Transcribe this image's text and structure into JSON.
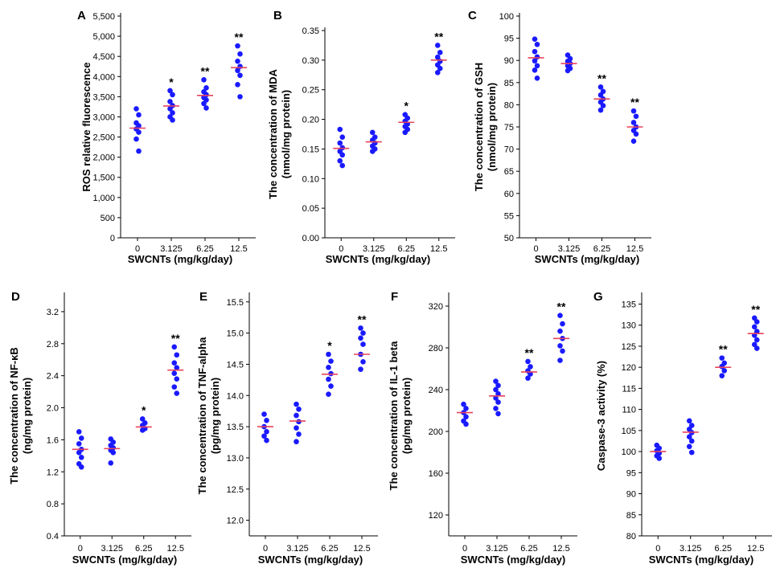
{
  "colors": {
    "point": "#1a1aff",
    "mean_line": "#e8435a",
    "axis": "#000000"
  },
  "chart_data": [
    {
      "panel": "A",
      "type": "scatter",
      "xlabel": "SWCNTs (mg/kg/day)",
      "ylabel": [
        "ROS relative fluorescence"
      ],
      "categories": [
        "0",
        "3.125",
        "6.25",
        "12.5"
      ],
      "ylim": [
        0,
        5500
      ],
      "yticks": [
        0,
        500,
        1000,
        1500,
        2000,
        2500,
        3000,
        3500,
        4000,
        4500,
        5000,
        5500
      ],
      "ytick_labels": [
        "0",
        "500",
        "1,000",
        "1,500",
        "2,000",
        "2,500",
        "3,000",
        "3,500",
        "4,000",
        "4,500",
        "5,000",
        "5,500"
      ],
      "means": [
        2720,
        3270,
        3530,
        4220
      ],
      "points": [
        [
          3200,
          3050,
          2850,
          2780,
          2700,
          2620,
          2450,
          2150
        ],
        [
          3650,
          3550,
          3380,
          3280,
          3200,
          3100,
          3000,
          2920
        ],
        [
          3920,
          3720,
          3620,
          3550,
          3480,
          3420,
          3330,
          3220
        ],
        [
          4760,
          4560,
          4380,
          4250,
          4150,
          4030,
          3800,
          3500
        ]
      ],
      "significance": [
        "",
        "*",
        "**",
        "**"
      ]
    },
    {
      "panel": "B",
      "type": "scatter",
      "xlabel": "SWCNTs (mg/kg/day)",
      "ylabel": [
        "The concentration of MDA",
        "(nmol/mg protein)"
      ],
      "categories": [
        "0",
        "3.125",
        "6.25",
        "12.5"
      ],
      "ylim": [
        0,
        0.35
      ],
      "yticks": [
        0,
        0.05,
        0.1,
        0.15,
        0.2,
        0.25,
        0.3,
        0.35
      ],
      "ytick_labels": [
        "0.00",
        "0.05",
        "0.10",
        "0.15",
        "0.20",
        "0.25",
        "0.30",
        "0.35"
      ],
      "means": [
        0.151,
        0.162,
        0.195,
        0.3
      ],
      "points": [
        [
          0.183,
          0.17,
          0.16,
          0.152,
          0.146,
          0.14,
          0.13,
          0.122
        ],
        [
          0.178,
          0.17,
          0.165,
          0.16,
          0.155,
          0.15,
          0.146
        ],
        [
          0.208,
          0.202,
          0.197,
          0.192,
          0.188,
          0.183,
          0.178
        ],
        [
          0.325,
          0.313,
          0.305,
          0.298,
          0.292,
          0.286,
          0.279
        ]
      ],
      "significance": [
        "",
        "",
        "*",
        "**"
      ]
    },
    {
      "panel": "C",
      "type": "scatter",
      "xlabel": "SWCNTs (mg/kg/day)",
      "ylabel": [
        "The concentration of GSH",
        "(nmol/mg protein)"
      ],
      "categories": [
        "0",
        "3.125",
        "6.25",
        "12.5"
      ],
      "ylim": [
        50,
        100
      ],
      "yticks": [
        50,
        55,
        60,
        65,
        70,
        75,
        80,
        85,
        90,
        95,
        100
      ],
      "ytick_labels": [
        "50",
        "55",
        "60",
        "65",
        "70",
        "75",
        "80",
        "85",
        "90",
        "95",
        "100"
      ],
      "means": [
        90.6,
        89.3,
        81.3,
        75.0
      ],
      "points": [
        [
          94.8,
          93.6,
          92.0,
          90.8,
          89.9,
          88.8,
          87.8,
          86.0
        ],
        [
          91.2,
          90.4,
          89.8,
          89.3,
          88.8,
          88.2,
          87.7
        ],
        [
          84.0,
          83.0,
          82.2,
          81.3,
          80.6,
          79.8,
          78.8
        ],
        [
          78.6,
          77.4,
          76.0,
          75.0,
          74.2,
          73.4,
          71.8
        ]
      ],
      "significance": [
        "",
        "",
        "**",
        "**"
      ]
    },
    {
      "panel": "D",
      "type": "scatter",
      "xlabel": "SWCNTs (mg/kg/day)",
      "ylabel": [
        "The concentration of NF-κB",
        "(ng/mg protein)"
      ],
      "categories": [
        "0",
        "3.125",
        "6.25",
        "12.5"
      ],
      "ylim": [
        0.4,
        3.4
      ],
      "yticks": [
        0.4,
        0.8,
        1.2,
        1.6,
        2.0,
        2.4,
        2.8,
        3.2
      ],
      "ytick_labels": [
        "0.4",
        "0.8",
        "1.2",
        "1.6",
        "2.0",
        "2.4",
        "2.8",
        "3.2"
      ],
      "means": [
        1.48,
        1.49,
        1.76,
        2.47
      ],
      "points": [
        [
          1.7,
          1.62,
          1.55,
          1.48,
          1.44,
          1.38,
          1.3,
          1.26
        ],
        [
          1.61,
          1.57,
          1.53,
          1.5,
          1.47,
          1.44,
          1.31
        ],
        [
          1.86,
          1.81,
          1.78,
          1.74,
          1.72
        ],
        [
          2.76,
          2.66,
          2.56,
          2.5,
          2.43,
          2.36,
          2.26,
          2.18
        ]
      ],
      "significance": [
        "",
        "",
        "*",
        "**"
      ]
    },
    {
      "panel": "E",
      "type": "scatter",
      "xlabel": "SWCNTs (mg/kg/day)",
      "ylabel": [
        "The concentration of TNF-alpha",
        "(pg/mg protein)"
      ],
      "categories": [
        "0",
        "3.125",
        "6.25",
        "12.5"
      ],
      "ylim": [
        11.75,
        15.6
      ],
      "yticks": [
        12.0,
        12.5,
        13.0,
        13.5,
        14.0,
        14.5,
        15.0,
        15.5
      ],
      "ytick_labels": [
        "12.0",
        "12.5",
        "13.0",
        "13.5",
        "14.0",
        "14.5",
        "15.0",
        "15.5"
      ],
      "means": [
        13.5,
        13.59,
        14.34,
        14.66
      ],
      "points": [
        [
          13.7,
          13.6,
          13.5,
          13.42,
          13.35,
          13.28
        ],
        [
          13.86,
          13.78,
          13.68,
          13.58,
          13.48,
          13.38,
          13.26
        ],
        [
          14.66,
          14.55,
          14.45,
          14.35,
          14.26,
          14.15,
          14.02
        ],
        [
          15.08,
          15.0,
          14.92,
          14.82,
          14.66,
          14.54,
          14.42
        ]
      ],
      "significance": [
        "",
        "",
        "*",
        "**"
      ]
    },
    {
      "panel": "F",
      "type": "scatter",
      "xlabel": "SWCNTs (mg/kg/day)",
      "ylabel": [
        "The concentration of IL-1 beta",
        "(pg/mg protein)"
      ],
      "categories": [
        "0",
        "3.125",
        "6.25",
        "12.5"
      ],
      "ylim": [
        100,
        330
      ],
      "yticks": [
        120,
        160,
        200,
        240,
        280,
        320
      ],
      "ytick_labels": [
        "120",
        "160",
        "200",
        "240",
        "280",
        "320"
      ],
      "means": [
        218,
        234,
        257,
        289
      ],
      "points": [
        [
          226,
          222,
          218,
          214,
          210,
          207
        ],
        [
          248,
          244,
          240,
          236,
          232,
          228,
          222,
          217
        ],
        [
          267,
          262,
          258,
          255,
          251
        ],
        [
          311,
          303,
          296,
          289,
          282,
          277,
          268
        ]
      ],
      "significance": [
        "",
        "",
        "**",
        "**"
      ]
    },
    {
      "panel": "G",
      "type": "scatter",
      "xlabel": "SWCNTs (mg/kg/day)",
      "ylabel": [
        "Caspase-3 activity (%)"
      ],
      "categories": [
        "0",
        "3.125",
        "6.25",
        "12.5"
      ],
      "ylim": [
        80,
        137
      ],
      "yticks": [
        80,
        85,
        90,
        95,
        100,
        105,
        110,
        115,
        120,
        125,
        130,
        135
      ],
      "ytick_labels": [
        "80",
        "85",
        "90",
        "95",
        "100",
        "105",
        "110",
        "115",
        "120",
        "125",
        "130",
        "135"
      ],
      "means": [
        100.0,
        104.6,
        120.0,
        128.0
      ],
      "points": [
        [
          101.5,
          100.8,
          100.2,
          99.6,
          99.0,
          98.4
        ],
        [
          107.3,
          106.2,
          105.3,
          104.5,
          103.5,
          102.5,
          101.2,
          99.8
        ],
        [
          122.2,
          121.0,
          120.2,
          119.2,
          118.0
        ],
        [
          131.7,
          130.8,
          129.6,
          128.5,
          127.6,
          126.5,
          125.4,
          124.5
        ]
      ],
      "significance": [
        "",
        "",
        "**",
        "**"
      ]
    }
  ]
}
